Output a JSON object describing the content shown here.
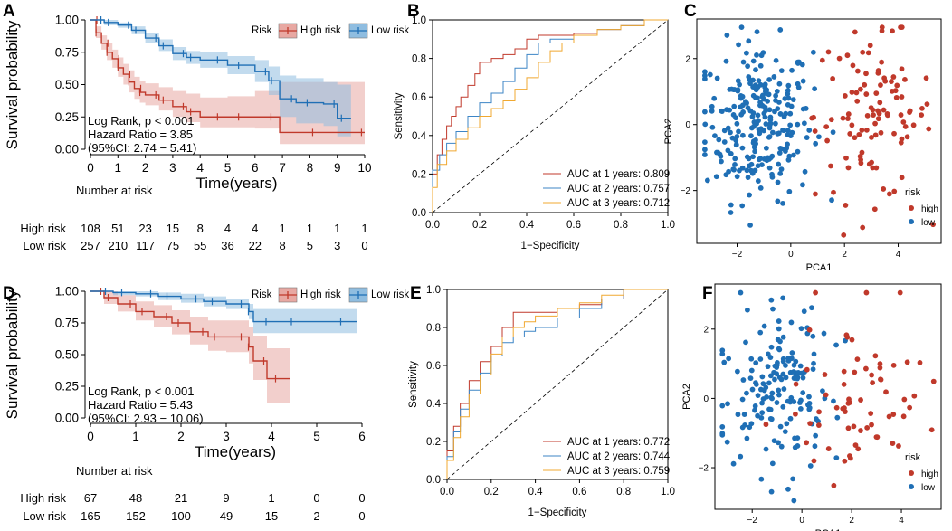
{
  "colors": {
    "high": "#c0392b",
    "low": "#1f6fb5",
    "high_fill": "#e8a8a2",
    "low_fill": "#8fbde0",
    "auc1": "#c0392b",
    "auc2": "#3d85c6",
    "auc3": "#f0a830"
  },
  "chart_data": [
    {
      "panel": "A",
      "type": "line",
      "subtype": "kaplan-meier",
      "ylabel": "Survival probability",
      "xlabel": "Time(years)",
      "xlim": [
        0,
        10
      ],
      "ylim": [
        0,
        1
      ],
      "xticks": [
        "0",
        "1",
        "2",
        "3",
        "4",
        "5",
        "6",
        "7",
        "8",
        "9",
        "10"
      ],
      "yticks": [
        "0.00",
        "0.25",
        "0.50",
        "0.75",
        "1.00"
      ],
      "legend_title": "Risk",
      "legend": [
        "High risk",
        "Low risk"
      ],
      "stats": [
        "Log Rank, p < 0.001",
        "Hazard Ratio =  3.85",
        "(95%CI: 2.74 − 5.41)"
      ],
      "series": [
        {
          "name": "High risk",
          "x": [
            0,
            0.2,
            0.4,
            0.6,
            0.8,
            1,
            1.2,
            1.4,
            1.6,
            1.8,
            2,
            2.5,
            3,
            3.5,
            4,
            5,
            6,
            6.9,
            9.5,
            10
          ],
          "y": [
            1,
            0.9,
            0.82,
            0.75,
            0.7,
            0.63,
            0.58,
            0.52,
            0.47,
            0.44,
            0.42,
            0.38,
            0.33,
            0.29,
            0.25,
            0.25,
            0.25,
            0.13,
            0.13,
            0.13
          ],
          "lower": [
            1,
            0.86,
            0.77,
            0.69,
            0.63,
            0.56,
            0.5,
            0.44,
            0.39,
            0.36,
            0.34,
            0.3,
            0.25,
            0.21,
            0.17,
            0.17,
            0.16,
            0.04,
            0.04,
            0.04
          ],
          "upper": [
            1,
            0.95,
            0.88,
            0.82,
            0.77,
            0.71,
            0.66,
            0.61,
            0.56,
            0.53,
            0.51,
            0.48,
            0.45,
            0.43,
            0.4,
            0.41,
            0.45,
            0.52,
            0.52,
            0.52
          ]
        },
        {
          "name": "Low risk",
          "x": [
            0,
            0.5,
            1,
            1.5,
            2,
            2.5,
            3,
            3.5,
            4,
            5,
            6,
            6.5,
            6.9,
            7.5,
            8.5,
            9,
            9.5
          ],
          "y": [
            1,
            0.98,
            0.96,
            0.92,
            0.86,
            0.8,
            0.74,
            0.71,
            0.69,
            0.65,
            0.6,
            0.53,
            0.39,
            0.36,
            0.35,
            0.24,
            0.24
          ],
          "lower": [
            1,
            0.96,
            0.94,
            0.89,
            0.82,
            0.76,
            0.69,
            0.66,
            0.63,
            0.58,
            0.52,
            0.42,
            0.25,
            0.2,
            0.18,
            0.1,
            0.1
          ],
          "upper": [
            1,
            1,
            0.98,
            0.95,
            0.9,
            0.85,
            0.79,
            0.76,
            0.75,
            0.72,
            0.69,
            0.64,
            0.57,
            0.55,
            0.52,
            0.5,
            0.5
          ]
        }
      ],
      "risk_table": {
        "title": "Number at risk",
        "rows": [
          {
            "name": "High risk",
            "values": [
              "108",
              "51",
              "23",
              "15",
              "8",
              "4",
              "4",
              "1",
              "1",
              "1",
              "1"
            ]
          },
          {
            "name": "Low risk",
            "values": [
              "257",
              "210",
              "117",
              "75",
              "55",
              "36",
              "22",
              "8",
              "5",
              "3",
              "0"
            ]
          }
        ]
      }
    },
    {
      "panel": "B",
      "type": "line",
      "subtype": "roc",
      "xlabel": "1−Specificity",
      "ylabel": "Sensitivity",
      "xlim": [
        0,
        1
      ],
      "ylim": [
        0,
        1
      ],
      "xticks": [
        "0.0",
        "0.2",
        "0.4",
        "0.6",
        "0.8",
        "1.0"
      ],
      "yticks": [
        "0.0",
        "0.2",
        "0.4",
        "0.6",
        "0.8",
        "1.0"
      ],
      "series": [
        {
          "name": "AUC at 1 years: 0.809",
          "x": [
            0,
            0.02,
            0.04,
            0.06,
            0.08,
            0.1,
            0.12,
            0.15,
            0.18,
            0.2,
            0.25,
            0.3,
            0.35,
            0.4,
            0.45,
            0.5,
            0.6,
            0.7,
            0.8,
            0.9,
            1
          ],
          "y": [
            0,
            0.2,
            0.3,
            0.38,
            0.45,
            0.5,
            0.55,
            0.6,
            0.66,
            0.72,
            0.78,
            0.8,
            0.82,
            0.85,
            0.9,
            0.92,
            0.92,
            0.93,
            0.95,
            0.97,
            1
          ]
        },
        {
          "name": "AUC at 2 years: 0.757",
          "x": [
            0,
            0.03,
            0.06,
            0.1,
            0.15,
            0.2,
            0.25,
            0.3,
            0.35,
            0.4,
            0.45,
            0.5,
            0.6,
            0.7,
            0.8,
            0.9,
            1
          ],
          "y": [
            0,
            0.22,
            0.3,
            0.36,
            0.42,
            0.5,
            0.57,
            0.62,
            0.68,
            0.75,
            0.82,
            0.88,
            0.9,
            0.92,
            0.95,
            0.97,
            1
          ]
        },
        {
          "name": "AUC at 3 years: 0.712",
          "x": [
            0,
            0.02,
            0.06,
            0.1,
            0.15,
            0.2,
            0.25,
            0.3,
            0.35,
            0.4,
            0.45,
            0.5,
            0.55,
            0.6,
            0.7,
            0.8,
            0.9,
            1
          ],
          "y": [
            0,
            0.13,
            0.25,
            0.32,
            0.38,
            0.44,
            0.5,
            0.54,
            0.58,
            0.64,
            0.7,
            0.78,
            0.84,
            0.88,
            0.92,
            0.95,
            0.97,
            1
          ]
        }
      ]
    },
    {
      "panel": "C",
      "type": "scatter",
      "xlabel": "PCA1",
      "ylabel": "PCA2",
      "xlim": [
        -3.5,
        5.6
      ],
      "ylim": [
        -3.6,
        3.2
      ],
      "xticks": [
        "−2",
        "0",
        "2",
        "4"
      ],
      "yticks": [
        "−2",
        "0",
        "2"
      ],
      "legend_title": "risk",
      "legend": [
        "high",
        "low"
      ],
      "groups": [
        {
          "name": "high",
          "n": 108,
          "cx": 3.1,
          "cy": 0.3,
          "sx": 1.1,
          "sy": 1.3
        },
        {
          "name": "low",
          "n": 257,
          "cx": -1.2,
          "cy": 0.1,
          "sx": 1.0,
          "sy": 1.2
        }
      ]
    },
    {
      "panel": "D",
      "type": "line",
      "subtype": "kaplan-meier",
      "ylabel": "Survival probability",
      "xlabel": "Time(years)",
      "xlim": [
        0,
        6
      ],
      "ylim": [
        0,
        1
      ],
      "xticks": [
        "0",
        "1",
        "2",
        "3",
        "4",
        "5",
        "6"
      ],
      "yticks": [
        "0.00",
        "0.25",
        "0.50",
        "0.75",
        "1.00"
      ],
      "legend_title": "Risk",
      "legend": [
        "High risk",
        "Low risk"
      ],
      "stats": [
        "Log Rank, p < 0.001",
        "Hazard Ratio =  5.43",
        "(95%CI: 2.93 − 10.06)"
      ],
      "series": [
        {
          "name": "High risk",
          "x": [
            0,
            0.3,
            0.6,
            1,
            1.4,
            1.8,
            2.2,
            2.6,
            3,
            3.5,
            3.6,
            3.9,
            4.4
          ],
          "y": [
            1,
            0.95,
            0.9,
            0.84,
            0.8,
            0.75,
            0.68,
            0.64,
            0.64,
            0.56,
            0.45,
            0.31,
            0.31
          ],
          "lower": [
            1,
            0.9,
            0.84,
            0.77,
            0.72,
            0.66,
            0.58,
            0.53,
            0.52,
            0.43,
            0.3,
            0.12,
            0.12
          ],
          "upper": [
            1,
            1,
            0.97,
            0.92,
            0.89,
            0.85,
            0.8,
            0.77,
            0.77,
            0.72,
            0.65,
            0.55,
            0.55
          ]
        },
        {
          "name": "Low risk",
          "x": [
            0,
            0.5,
            1,
            1.5,
            2,
            2.5,
            3,
            3.5,
            3.6,
            4,
            5,
            5.9
          ],
          "y": [
            1,
            0.99,
            0.98,
            0.96,
            0.94,
            0.92,
            0.9,
            0.84,
            0.76,
            0.76,
            0.76,
            0.76
          ],
          "lower": [
            1,
            0.97,
            0.96,
            0.93,
            0.91,
            0.88,
            0.86,
            0.78,
            0.67,
            0.67,
            0.67,
            0.67
          ],
          "upper": [
            1,
            1,
            1,
            0.99,
            0.98,
            0.96,
            0.94,
            0.9,
            0.86,
            0.86,
            0.86,
            0.86
          ]
        }
      ],
      "risk_table": {
        "title": "Number at risk",
        "rows": [
          {
            "name": "High risk",
            "values": [
              "67",
              "48",
              "21",
              "9",
              "1",
              "0",
              "0"
            ]
          },
          {
            "name": "Low risk",
            "values": [
              "165",
              "152",
              "100",
              "49",
              "15",
              "2",
              "0"
            ]
          }
        ]
      }
    },
    {
      "panel": "E",
      "type": "line",
      "subtype": "roc",
      "xlabel": "1−Specificity",
      "ylabel": "Sensitivity",
      "xlim": [
        0,
        1
      ],
      "ylim": [
        0,
        1
      ],
      "xticks": [
        "0.0",
        "0.2",
        "0.4",
        "0.6",
        "0.8",
        "1.0"
      ],
      "yticks": [
        "0.0",
        "0.2",
        "0.4",
        "0.6",
        "0.8",
        "1.0"
      ],
      "series": [
        {
          "name": "AUC at 1 years: 0.772",
          "x": [
            0,
            0.03,
            0.06,
            0.1,
            0.15,
            0.2,
            0.25,
            0.3,
            0.35,
            0.4,
            0.5,
            0.6,
            0.7,
            0.8,
            0.9,
            1
          ],
          "y": [
            0,
            0.15,
            0.28,
            0.4,
            0.52,
            0.62,
            0.7,
            0.8,
            0.88,
            0.88,
            0.88,
            0.9,
            0.92,
            0.95,
            1,
            1
          ]
        },
        {
          "name": "AUC at 2 years: 0.744",
          "x": [
            0,
            0.03,
            0.06,
            0.1,
            0.15,
            0.2,
            0.25,
            0.3,
            0.35,
            0.4,
            0.5,
            0.6,
            0.7,
            0.8,
            0.9,
            1
          ],
          "y": [
            0,
            0.12,
            0.25,
            0.37,
            0.47,
            0.56,
            0.65,
            0.72,
            0.75,
            0.78,
            0.8,
            0.85,
            0.9,
            0.95,
            1,
            1
          ]
        },
        {
          "name": "AUC at 3 years: 0.759",
          "x": [
            0,
            0.03,
            0.06,
            0.1,
            0.15,
            0.2,
            0.25,
            0.3,
            0.35,
            0.4,
            0.5,
            0.6,
            0.7,
            0.8,
            0.9,
            1
          ],
          "y": [
            0,
            0.1,
            0.22,
            0.33,
            0.45,
            0.55,
            0.66,
            0.75,
            0.8,
            0.83,
            0.86,
            0.9,
            0.93,
            0.97,
            1,
            1
          ]
        }
      ]
    },
    {
      "panel": "F",
      "type": "scatter",
      "xlabel": "PCA1",
      "ylabel": "PCA2",
      "xlim": [
        -3.5,
        5.6
      ],
      "ylim": [
        -3.2,
        3.3
      ],
      "xticks": [
        "−2",
        "0",
        "2",
        "4"
      ],
      "yticks": [
        "−2",
        "0",
        "2"
      ],
      "legend_title": "risk",
      "legend": [
        "high",
        "low"
      ],
      "groups": [
        {
          "name": "high",
          "n": 67,
          "cx": 2.6,
          "cy": 0.0,
          "sx": 1.4,
          "sy": 1.3
        },
        {
          "name": "low",
          "n": 165,
          "cx": -1.1,
          "cy": 0.2,
          "sx": 1.1,
          "sy": 1.2
        }
      ]
    }
  ]
}
